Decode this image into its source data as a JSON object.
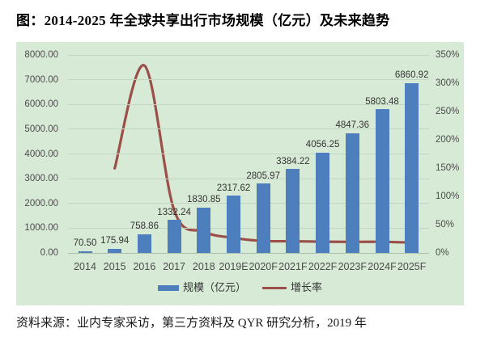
{
  "page": {
    "title": "图：2014-2025 年全球共享出行市场规模（亿元）及未来趋势",
    "source": "资料来源：业内专家采访，第三方资料及 QYR 研究分析，2019 年"
  },
  "colors": {
    "chart_bg": "#d7ead6",
    "bar": "#4d7ebd",
    "line": "#9c4f48",
    "gridline": "#c3d6c3",
    "baseline": "#a9bfa9",
    "axis_text": "#4c4c4c",
    "label_text": "#333333"
  },
  "chart_data": {
    "type": "bar",
    "subtype": "bar-line-combo",
    "title": "2014-2025 年全球共享出行市场规模（亿元）及未来趋势",
    "categories": [
      "2014",
      "2015",
      "2016",
      "2017",
      "2018",
      "2019E",
      "2020F",
      "2021F",
      "2022F",
      "2023F",
      "2024F",
      "2025F"
    ],
    "series": [
      {
        "name": "规模（亿元）",
        "type": "bar",
        "axis": "left",
        "values": [
          70.5,
          175.94,
          758.86,
          1332.24,
          1830.85,
          2317.62,
          2805.97,
          3384.22,
          4056.25,
          4847.36,
          5803.48,
          6860.92
        ]
      },
      {
        "name": "增长率",
        "type": "line",
        "axis": "right",
        "unit": "%",
        "values": [
          null,
          149.6,
          331.3,
          75.6,
          37.4,
          26.6,
          21.1,
          20.6,
          19.9,
          19.5,
          19.7,
          18.2
        ]
      }
    ],
    "bar_labels": [
      "70.50",
      "175.94",
      "758.86",
      "1332.24",
      "1830.85",
      "2317.62",
      "2805.97",
      "3384.22",
      "4056.25",
      "4847.36",
      "5803.48",
      "6860.92"
    ],
    "left_axis": {
      "min": 0,
      "max": 8000,
      "step": 1000,
      "ticks": [
        "0.00",
        "1000.00",
        "2000.00",
        "3000.00",
        "4000.00",
        "5000.00",
        "6000.00",
        "7000.00",
        "8000.00"
      ]
    },
    "right_axis": {
      "min": 0,
      "max": 350,
      "step": 50,
      "ticks": [
        "0%",
        "50%",
        "100%",
        "150%",
        "200%",
        "250%",
        "300%",
        "350%"
      ]
    },
    "legend": [
      {
        "label": "规模（亿元）",
        "swatch": "bar"
      },
      {
        "label": "增长率",
        "swatch": "line"
      }
    ],
    "grid": "horizontal-faint",
    "legend_position": "bottom-center"
  }
}
